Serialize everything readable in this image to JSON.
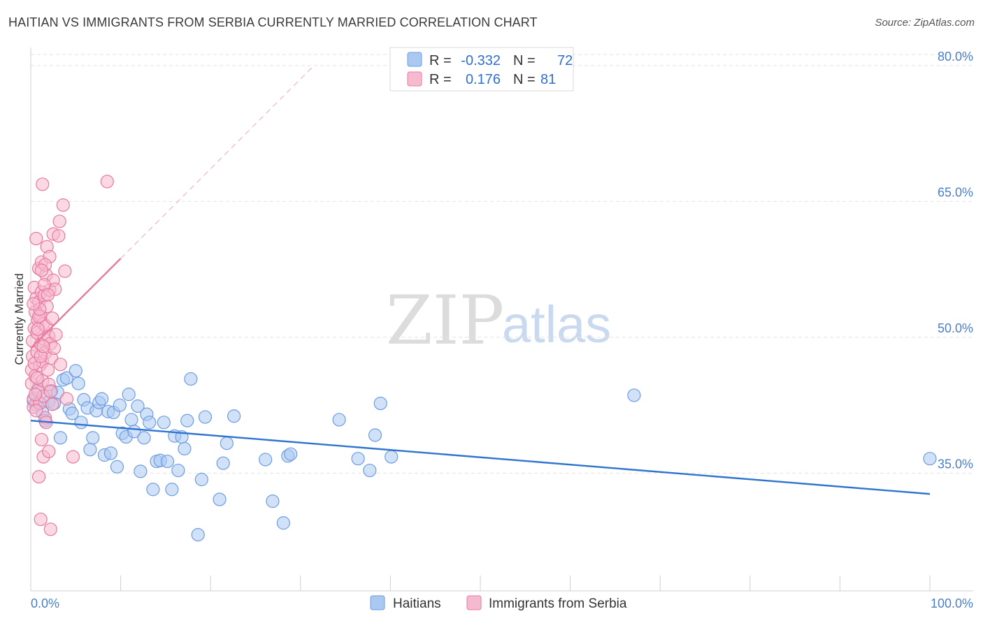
{
  "header": {
    "title": "HAITIAN VS IMMIGRANTS FROM SERBIA CURRENTLY MARRIED CORRELATION CHART",
    "source": "Source: ZipAtlas.com"
  },
  "watermark": {
    "zip": "ZIP",
    "atlas": "atlas"
  },
  "legend_top": {
    "rows": [
      {
        "r_label": "R = ",
        "r_value": "-0.332",
        "n_label": "N = ",
        "n_value": "72",
        "color": "#a9c8f2"
      },
      {
        "r_label": "R = ",
        "r_value": "0.176",
        "n_label": "N = ",
        "n_value": "81",
        "color": "#f6bad0"
      }
    ]
  },
  "chart_data": {
    "type": "scatter",
    "title": "HAITIAN VS IMMIGRANTS FROM SERBIA CURRENTLY MARRIED CORRELATION CHART",
    "xlabel": "",
    "ylabel": "Currently Married",
    "xlim": [
      0,
      100
    ],
    "ylim": [
      22,
      82
    ],
    "x_tick_labels": [
      "0.0%",
      "100.0%"
    ],
    "y_ticks": [
      35,
      50,
      65,
      80
    ],
    "y_tick_labels": [
      "35.0%",
      "50.0%",
      "65.0%",
      "80.0%"
    ],
    "grid": true,
    "legend_placement": "bottom-center",
    "series": [
      {
        "name": "Haitians",
        "color": "#6d9de0",
        "fill": "#a9c8f2",
        "r": -0.332,
        "n": 72,
        "trend": {
          "x": [
            0,
            100
          ],
          "y": [
            40.8,
            32.7
          ],
          "dashed_extension": false
        },
        "points": [
          [
            0.3,
            43.0
          ],
          [
            0.5,
            42.6
          ],
          [
            0.8,
            44.3
          ],
          [
            1.0,
            42.8
          ],
          [
            1.3,
            41.7
          ],
          [
            1.6,
            40.8
          ],
          [
            2.0,
            42.9
          ],
          [
            2.3,
            44.1
          ],
          [
            2.6,
            42.7
          ],
          [
            3.0,
            43.9
          ],
          [
            3.3,
            38.9
          ],
          [
            3.6,
            45.3
          ],
          [
            4.0,
            45.5
          ],
          [
            4.3,
            42.1
          ],
          [
            4.6,
            41.6
          ],
          [
            5.0,
            46.3
          ],
          [
            5.3,
            44.9
          ],
          [
            5.6,
            40.6
          ],
          [
            5.9,
            43.1
          ],
          [
            6.3,
            42.2
          ],
          [
            6.6,
            37.6
          ],
          [
            6.9,
            38.9
          ],
          [
            7.3,
            41.9
          ],
          [
            7.6,
            42.8
          ],
          [
            7.9,
            43.2
          ],
          [
            8.2,
            37.0
          ],
          [
            8.6,
            41.8
          ],
          [
            8.9,
            37.2
          ],
          [
            9.2,
            41.7
          ],
          [
            9.6,
            35.7
          ],
          [
            9.9,
            42.5
          ],
          [
            10.2,
            39.4
          ],
          [
            10.6,
            39.0
          ],
          [
            10.9,
            43.7
          ],
          [
            11.2,
            40.9
          ],
          [
            11.5,
            39.6
          ],
          [
            11.9,
            42.4
          ],
          [
            12.2,
            35.2
          ],
          [
            12.6,
            38.9
          ],
          [
            12.9,
            41.5
          ],
          [
            13.2,
            40.6
          ],
          [
            13.6,
            33.2
          ],
          [
            14.0,
            36.3
          ],
          [
            14.4,
            36.4
          ],
          [
            14.8,
            40.6
          ],
          [
            15.2,
            36.3
          ],
          [
            15.7,
            33.2
          ],
          [
            16.0,
            39.1
          ],
          [
            16.4,
            35.3
          ],
          [
            16.8,
            39.0
          ],
          [
            17.1,
            37.7
          ],
          [
            17.4,
            40.8
          ],
          [
            17.8,
            45.4
          ],
          [
            18.6,
            28.2
          ],
          [
            19.0,
            34.3
          ],
          [
            19.4,
            41.2
          ],
          [
            21.0,
            32.1
          ],
          [
            21.4,
            36.1
          ],
          [
            21.8,
            38.3
          ],
          [
            22.6,
            41.3
          ],
          [
            26.1,
            36.5
          ],
          [
            26.9,
            31.9
          ],
          [
            28.1,
            29.5
          ],
          [
            28.6,
            36.9
          ],
          [
            28.9,
            37.1
          ],
          [
            34.3,
            40.9
          ],
          [
            36.4,
            36.6
          ],
          [
            37.7,
            35.3
          ],
          [
            38.3,
            39.2
          ],
          [
            38.9,
            42.7
          ],
          [
            40.1,
            36.8
          ],
          [
            67.1,
            43.6
          ],
          [
            100.0,
            36.6
          ]
        ]
      },
      {
        "name": "Immigrants from Serbia",
        "color": "#e8799e",
        "fill": "#f6bad0",
        "r": 0.176,
        "n": 81,
        "trend": {
          "x": [
            0,
            10
          ],
          "y": [
            48.8,
            58.7
          ],
          "dashed_extension": true,
          "dash_to": [
            31.5,
            80.0
          ]
        },
        "points": [
          [
            0.1,
            44.9
          ],
          [
            0.1,
            46.4
          ],
          [
            0.2,
            47.9
          ],
          [
            0.2,
            49.6
          ],
          [
            0.3,
            42.3
          ],
          [
            0.3,
            43.2
          ],
          [
            0.4,
            51.0
          ],
          [
            0.4,
            55.5
          ],
          [
            0.5,
            52.8
          ],
          [
            0.5,
            45.7
          ],
          [
            0.6,
            54.3
          ],
          [
            0.6,
            60.9
          ],
          [
            0.7,
            48.4
          ],
          [
            0.7,
            50.5
          ],
          [
            0.8,
            51.9
          ],
          [
            0.8,
            44.1
          ],
          [
            0.9,
            57.6
          ],
          [
            0.9,
            53.9
          ],
          [
            1.0,
            42.7
          ],
          [
            1.0,
            46.9
          ],
          [
            1.1,
            49.2
          ],
          [
            1.1,
            52.4
          ],
          [
            1.2,
            55.0
          ],
          [
            1.2,
            58.3
          ],
          [
            1.3,
            45.2
          ],
          [
            1.3,
            47.3
          ],
          [
            1.4,
            51.5
          ],
          [
            1.4,
            43.5
          ],
          [
            1.5,
            54.6
          ],
          [
            1.5,
            49.8
          ],
          [
            1.6,
            41.1
          ],
          [
            1.6,
            48.3
          ],
          [
            1.7,
            56.9
          ],
          [
            1.7,
            51.2
          ],
          [
            1.8,
            53.4
          ],
          [
            1.8,
            60.0
          ],
          [
            1.9,
            46.4
          ],
          [
            2.0,
            44.8
          ],
          [
            2.0,
            50.1
          ],
          [
            2.1,
            55.2
          ],
          [
            2.1,
            58.9
          ],
          [
            2.2,
            49.3
          ],
          [
            2.3,
            47.7
          ],
          [
            2.4,
            52.1
          ],
          [
            2.5,
            56.3
          ],
          [
            2.5,
            61.4
          ],
          [
            2.6,
            48.8
          ],
          [
            2.7,
            55.3
          ],
          [
            0.9,
            34.6
          ],
          [
            1.2,
            38.7
          ],
          [
            1.4,
            36.8
          ],
          [
            1.1,
            29.9
          ],
          [
            2.2,
            28.8
          ],
          [
            2.0,
            37.4
          ],
          [
            1.3,
            66.9
          ],
          [
            3.1,
            61.2
          ],
          [
            3.2,
            62.8
          ],
          [
            3.6,
            64.6
          ],
          [
            3.8,
            57.3
          ],
          [
            1.6,
            58.0
          ],
          [
            0.9,
            52.3
          ],
          [
            1.2,
            57.4
          ],
          [
            0.5,
            43.7
          ],
          [
            0.6,
            41.9
          ],
          [
            0.7,
            45.5
          ],
          [
            0.8,
            50.9
          ],
          [
            1.0,
            53.1
          ],
          [
            1.5,
            55.8
          ],
          [
            1.9,
            54.7
          ],
          [
            2.4,
            42.6
          ],
          [
            3.3,
            47.0
          ],
          [
            4.0,
            43.2
          ],
          [
            4.7,
            36.8
          ],
          [
            8.5,
            67.2
          ],
          [
            1.7,
            40.6
          ],
          [
            2.2,
            44.0
          ],
          [
            0.4,
            47.1
          ],
          [
            0.3,
            53.7
          ],
          [
            1.1,
            47.9
          ],
          [
            2.8,
            50.3
          ],
          [
            1.4,
            49.0
          ]
        ]
      }
    ]
  }
}
